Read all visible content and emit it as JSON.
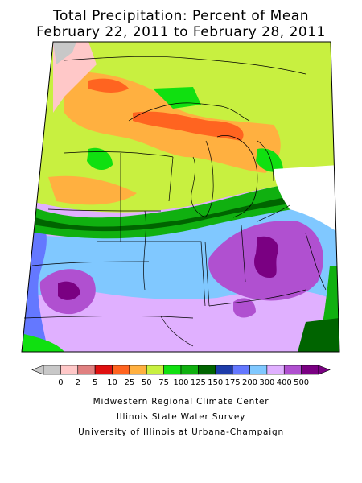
{
  "title": {
    "line1": "Total Precipitation: Percent of Mean",
    "line2": "February 22, 2011 to February 28, 2011"
  },
  "legend": {
    "labels": [
      "0",
      "2",
      "5",
      "10",
      "25",
      "50",
      "75",
      "100",
      "125",
      "150",
      "175",
      "200",
      "300",
      "400",
      "500"
    ],
    "colors": [
      "#c8c8c8",
      "#ffc8c8",
      "#e08080",
      "#e01010",
      "#ff6420",
      "#ffb040",
      "#c8f040",
      "#10e010",
      "#10b010",
      "#006400",
      "#1e3caa",
      "#6478ff",
      "#80c8ff",
      "#e0b0ff",
      "#b050d0",
      "#7a0082"
    ]
  },
  "credits": {
    "line1": "Midwestern Regional Climate Center",
    "line2": "Illinois State Water Survey",
    "line3": "University of Illinois at Urbana-Champaign"
  }
}
